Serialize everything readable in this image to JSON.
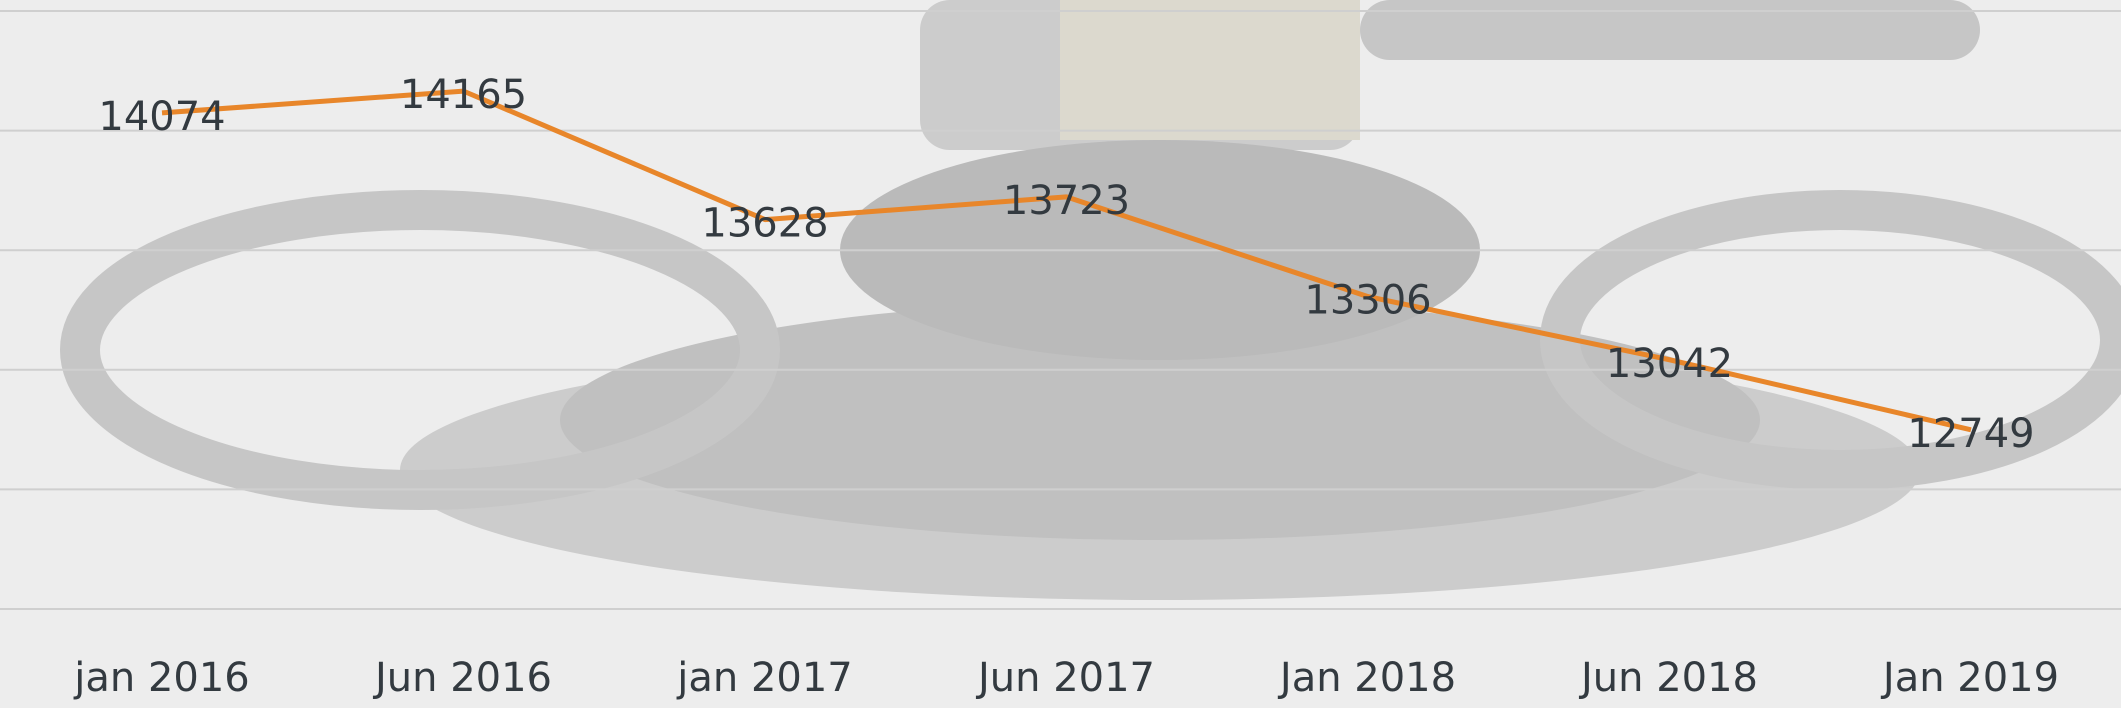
{
  "chart_data": {
    "type": "line",
    "categories": [
      "jan 2016",
      "Jun 2016",
      "jan 2017",
      "Jun 2017",
      "Jan 2018",
      "Jun 2018",
      "Jan 2019"
    ],
    "series": [
      {
        "color": "#e8862a",
        "values": [
          14074,
          14165,
          13628,
          13723,
          13306,
          13042,
          12749
        ]
      }
    ],
    "ylim": [
      12000,
      14500
    ],
    "yticks": [
      12000,
      12500,
      13000,
      13500,
      14000,
      14500
    ],
    "grid": true
  }
}
